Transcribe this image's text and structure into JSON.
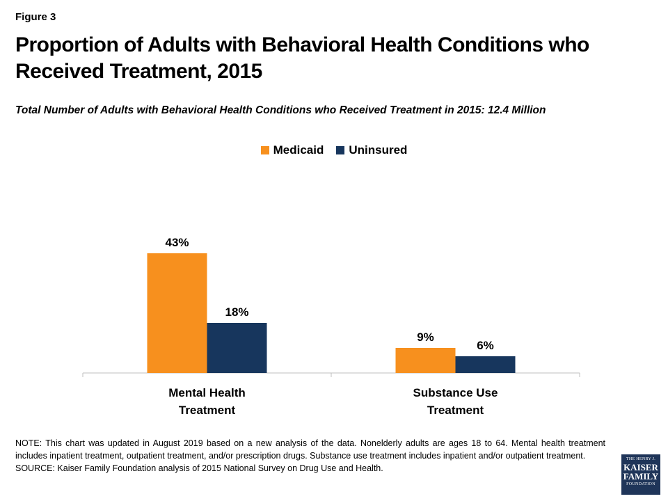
{
  "figure_label": "Figure 3",
  "title": "Proportion of Adults with Behavioral Health Conditions who Received Treatment, 2015",
  "subtitle": "Total Number of Adults with Behavioral Health Conditions who Received Treatment in 2015: 12.4 Million",
  "colors": {
    "medicaid": "#f7901e",
    "uninsured": "#17365d",
    "axis": "#bfbfbf"
  },
  "chart_data": {
    "type": "bar",
    "categories": [
      [
        "Mental Health",
        "Treatment"
      ],
      [
        "Substance Use",
        "Treatment"
      ]
    ],
    "series": [
      {
        "name": "Medicaid",
        "values": [
          43,
          9
        ],
        "labels": [
          "43%",
          "9%"
        ]
      },
      {
        "name": "Uninsured",
        "values": [
          18,
          6
        ],
        "labels": [
          "18%",
          "6%"
        ]
      }
    ],
    "ylim": [
      0,
      100
    ],
    "grid": false,
    "legend_position": "top-center"
  },
  "note": "NOTE: This chart was updated in August 2019 based on a new analysis of the data. Nonelderly adults are ages 18 to 64. Mental health treatment includes inpatient treatment, outpatient treatment, and/or prescription drugs. Substance use treatment includes inpatient and/or outpatient treatment.",
  "source": "SOURCE: Kaiser Family Foundation analysis of 2015 National Survey on Drug Use and Health.",
  "logo": {
    "line1": "THE HENRY J.",
    "line2": "KAISER",
    "line3": "FAMILY",
    "line4": "FOUNDATION"
  }
}
